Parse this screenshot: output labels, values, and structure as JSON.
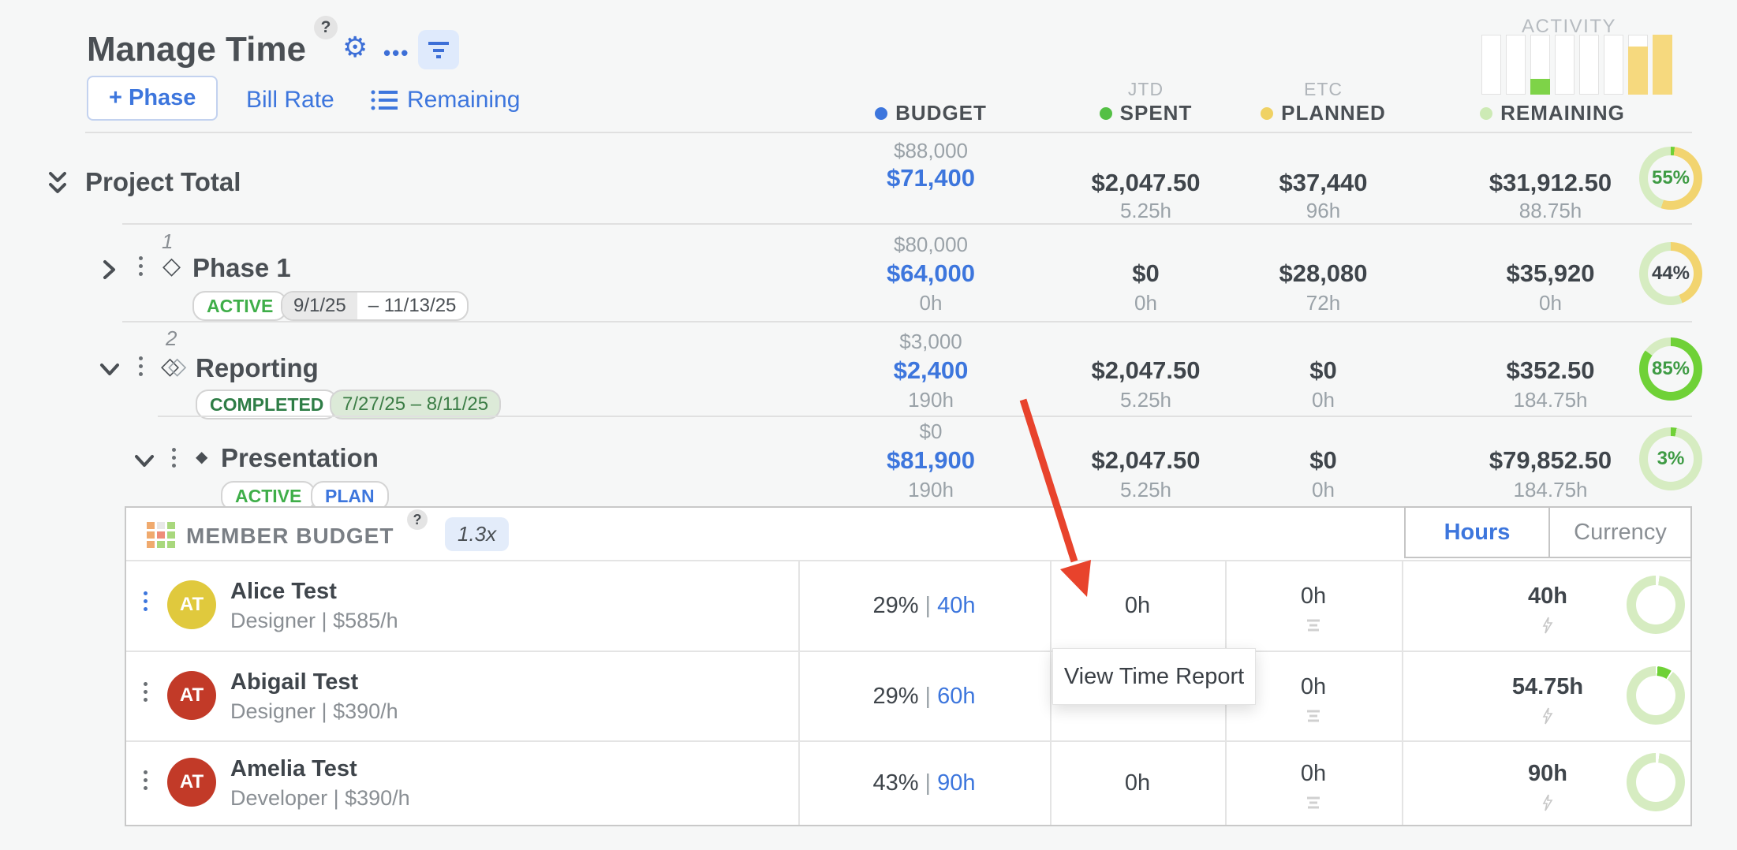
{
  "header": {
    "title": "Manage Time",
    "help": "?",
    "menu_dots": "•••"
  },
  "toolbar": {
    "add_phase": "+ Phase",
    "bill_rate": "Bill Rate",
    "remaining": "Remaining"
  },
  "columns": {
    "budget": "BUDGET",
    "spent": "SPENT",
    "spent_super": "JTD",
    "planned": "PLANNED",
    "planned_super": "ETC",
    "remaining": "REMAINING",
    "activity": "ACTIVITY"
  },
  "activity_chart": {
    "type": "bar",
    "values": [
      0,
      0,
      25,
      0,
      0,
      0,
      80,
      100
    ],
    "bar_colors": [
      "#ffffff",
      "#ffffff",
      "#7ed348",
      "#ffffff",
      "#ffffff",
      "#ffffff",
      "#f6d97e",
      "#f6d97e"
    ]
  },
  "project_total": {
    "name": "Project Total",
    "budget_sub": "$88,000",
    "budget_main": "$71,400",
    "spent_main": "$2,047.50",
    "spent_hours": "5.25h",
    "planned_main": "$37,440",
    "planned_hours": "96h",
    "remaining_main": "$31,912.50",
    "remaining_hours": "88.75h",
    "pct_label": "55%"
  },
  "phases": [
    {
      "num": "1",
      "name": "Phase 1",
      "status": "ACTIVE",
      "date_start": "9/1/25",
      "date_end": "–  11/13/25",
      "budget_sub": "$80,000",
      "budget_main": "$64,000",
      "budget_hours": "0h",
      "spent_main": "$0",
      "spent_hours": "0h",
      "planned_main": "$28,080",
      "planned_hours": "72h",
      "remaining_main": "$35,920",
      "remaining_hours": "0h",
      "pct_label": "44%"
    },
    {
      "num": "2",
      "name": "Reporting",
      "status": "COMPLETED",
      "date_range": "7/27/25  –  8/11/25",
      "budget_sub": "$3,000",
      "budget_main": "$2,400",
      "budget_hours": "190h",
      "spent_main": "$2,047.50",
      "spent_hours": "5.25h",
      "planned_main": "$0",
      "planned_hours": "0h",
      "remaining_main": "$352.50",
      "remaining_hours": "184.75h",
      "pct_label": "85%"
    },
    {
      "name": "Presentation",
      "status": "ACTIVE",
      "status2": "PLAN",
      "budget_sub": "$0",
      "budget_main": "$81,900",
      "budget_hours": "190h",
      "spent_main": "$2,047.50",
      "spent_hours": "5.25h",
      "planned_main": "$0",
      "planned_hours": "0h",
      "remaining_main": "$79,852.50",
      "remaining_hours": "184.75h",
      "pct_label": "3%"
    }
  ],
  "donuts": {
    "project_total": {
      "segments": [
        [
          "#6fd137",
          2
        ],
        [
          "#f2d46f",
          53
        ],
        [
          "#d6ecc1",
          45
        ]
      ]
    },
    "phase1": {
      "segments": [
        [
          "#f2d46f",
          44
        ],
        [
          "#d6ecc1",
          56
        ]
      ]
    },
    "reporting": {
      "segments": [
        [
          "#6fd137",
          85
        ],
        [
          "#d6ecc1",
          15
        ]
      ]
    },
    "presentation": {
      "segments": [
        [
          "#6fd137",
          3
        ],
        [
          "#d6ecc1",
          97
        ]
      ]
    },
    "alice": {
      "segments": [
        [
          "#ffffff",
          2
        ],
        [
          "#d6ecc1",
          98
        ]
      ]
    },
    "abigail": {
      "segments": [
        [
          "#ffffff",
          1
        ],
        [
          "#6fd137",
          8
        ],
        [
          "#ffffff",
          1
        ],
        [
          "#d6ecc1",
          90
        ]
      ]
    },
    "amelia": {
      "segments": [
        [
          "#ffffff",
          2
        ],
        [
          "#d6ecc1",
          98
        ]
      ]
    }
  },
  "member_budget": {
    "title": "MEMBER BUDGET",
    "help": "?",
    "multiplier": "1.3x",
    "toggle_hours": "Hours",
    "toggle_currency": "Currency",
    "members": [
      {
        "initials": "AT",
        "avatar_color": "#e0c93d",
        "name": "Alice Test",
        "role_rate": "Designer | $585/h",
        "pct": "29%",
        "alloc": "40h",
        "spent": "0h",
        "planned": "0h",
        "remaining": "40h"
      },
      {
        "initials": "AT",
        "avatar_color": "#c23a28",
        "name": "Abigail Test",
        "role_rate": "Designer | $390/h",
        "pct": "29%",
        "alloc": "60h",
        "spent": "",
        "planned": "0h",
        "remaining": "54.75h"
      },
      {
        "initials": "AT",
        "avatar_color": "#c23a28",
        "name": "Amelia Test",
        "role_rate": "Developer | $390/h",
        "pct": "43%",
        "alloc": "90h",
        "spent": "0h",
        "planned": "0h",
        "remaining": "90h"
      }
    ]
  },
  "tooltip": {
    "label": "View Time Report"
  },
  "colors": {
    "accent_blue": "#3d76dd",
    "spent_green": "#54c045",
    "planned_yellow": "#f0d264",
    "remaining_light_green": "#d6ecc1",
    "progress_green": "#6fd137",
    "arrow_red": "#e8432c"
  }
}
